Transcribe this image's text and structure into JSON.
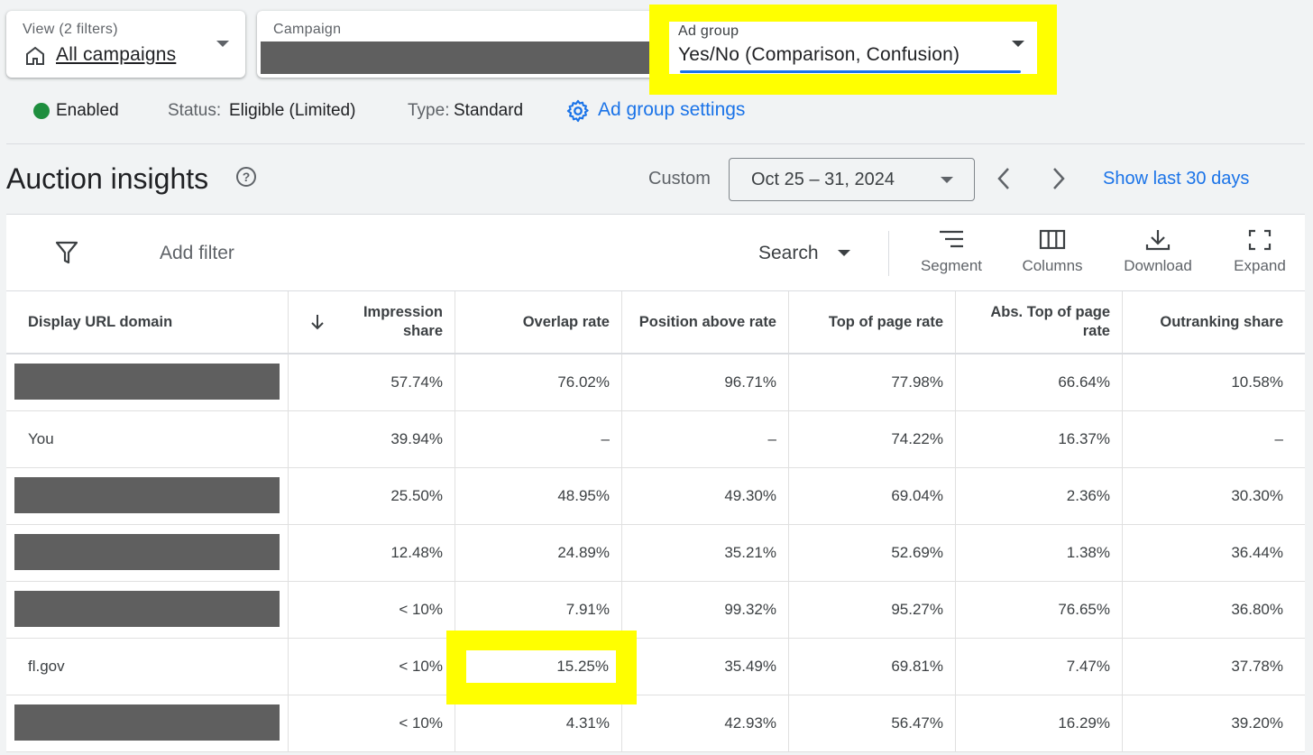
{
  "selectors": {
    "view": {
      "label": "View (2 filters)",
      "value": "All campaigns"
    },
    "campaign": {
      "label": "Campaign",
      "value": ""
    },
    "ad_group": {
      "label": "Ad group",
      "value": "Yes/No (Comparison, Confusion)"
    }
  },
  "status_bar": {
    "enabled": "Enabled",
    "status_label": "Status:",
    "status_value": "Eligible (Limited)",
    "type_label": "Type:",
    "type_value": "Standard",
    "settings_link": "Ad group settings"
  },
  "section": {
    "title": "Auction insights",
    "date_mode": "Custom",
    "date_range": "Oct 25 – 31, 2024",
    "show_last": "Show last 30 days"
  },
  "toolbar": {
    "add_filter": "Add filter",
    "search": "Search",
    "segment": "Segment",
    "columns": "Columns",
    "download": "Download",
    "expand": "Expand"
  },
  "table": {
    "headers": [
      "Display URL domain",
      "Impression share",
      "Overlap rate",
      "Position above rate",
      "Top of page rate",
      "Abs. Top of page rate",
      "Outranking share"
    ],
    "rows": [
      {
        "domain": "",
        "redacted": true,
        "values": [
          "57.74%",
          "76.02%",
          "96.71%",
          "77.98%",
          "66.64%",
          "10.58%"
        ]
      },
      {
        "domain": "You",
        "redacted": false,
        "values": [
          "39.94%",
          "–",
          "–",
          "74.22%",
          "16.37%",
          "–"
        ]
      },
      {
        "domain": "",
        "redacted": true,
        "values": [
          "25.50%",
          "48.95%",
          "49.30%",
          "69.04%",
          "2.36%",
          "30.30%"
        ]
      },
      {
        "domain": "",
        "redacted": true,
        "values": [
          "12.48%",
          "24.89%",
          "35.21%",
          "52.69%",
          "1.38%",
          "36.44%"
        ]
      },
      {
        "domain": "",
        "redacted": true,
        "values": [
          "< 10%",
          "7.91%",
          "99.32%",
          "95.27%",
          "76.65%",
          "36.80%"
        ]
      },
      {
        "domain": "fl.gov",
        "redacted": false,
        "values": [
          "< 10%",
          "15.25%",
          "35.49%",
          "69.81%",
          "7.47%",
          "37.78%"
        ]
      },
      {
        "domain": "",
        "redacted": true,
        "values": [
          "< 10%",
          "4.31%",
          "42.93%",
          "56.47%",
          "16.29%",
          "39.20%"
        ]
      }
    ]
  },
  "colors": {
    "accent": "#1a73e8",
    "highlight": "#ffff00",
    "enabled": "#1e8e3e",
    "redaction": "#5f5f5f"
  }
}
